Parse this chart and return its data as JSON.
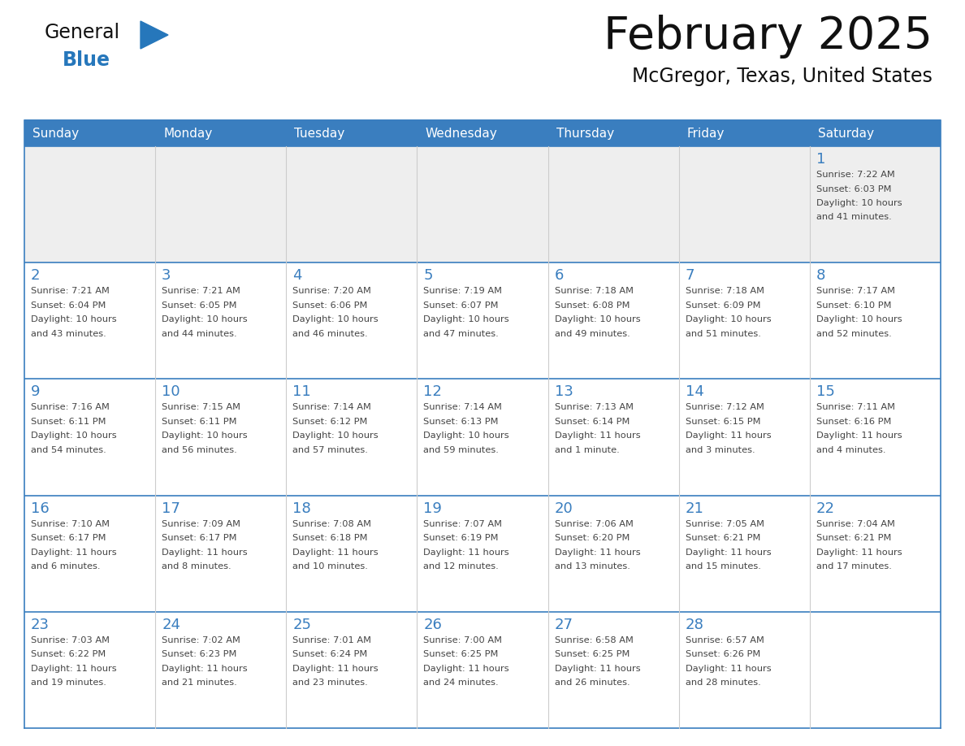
{
  "title": "February 2025",
  "subtitle": "McGregor, Texas, United States",
  "header_color": "#3A7EBF",
  "header_text_color": "#FFFFFF",
  "cell_bg_color": "#FFFFFF",
  "cell_alt_bg": "#EEEEEE",
  "border_color": "#3A7EBF",
  "day_number_color": "#3A7EBF",
  "cell_text_color": "#444444",
  "days_of_week": [
    "Sunday",
    "Monday",
    "Tuesday",
    "Wednesday",
    "Thursday",
    "Friday",
    "Saturday"
  ],
  "logo_general_color": "#111111",
  "logo_blue_color": "#2677BB",
  "weeks": [
    [
      {
        "day": null,
        "info": null
      },
      {
        "day": null,
        "info": null
      },
      {
        "day": null,
        "info": null
      },
      {
        "day": null,
        "info": null
      },
      {
        "day": null,
        "info": null
      },
      {
        "day": null,
        "info": null
      },
      {
        "day": 1,
        "info": "Sunrise: 7:22 AM\nSunset: 6:03 PM\nDaylight: 10 hours\nand 41 minutes."
      }
    ],
    [
      {
        "day": 2,
        "info": "Sunrise: 7:21 AM\nSunset: 6:04 PM\nDaylight: 10 hours\nand 43 minutes."
      },
      {
        "day": 3,
        "info": "Sunrise: 7:21 AM\nSunset: 6:05 PM\nDaylight: 10 hours\nand 44 minutes."
      },
      {
        "day": 4,
        "info": "Sunrise: 7:20 AM\nSunset: 6:06 PM\nDaylight: 10 hours\nand 46 minutes."
      },
      {
        "day": 5,
        "info": "Sunrise: 7:19 AM\nSunset: 6:07 PM\nDaylight: 10 hours\nand 47 minutes."
      },
      {
        "day": 6,
        "info": "Sunrise: 7:18 AM\nSunset: 6:08 PM\nDaylight: 10 hours\nand 49 minutes."
      },
      {
        "day": 7,
        "info": "Sunrise: 7:18 AM\nSunset: 6:09 PM\nDaylight: 10 hours\nand 51 minutes."
      },
      {
        "day": 8,
        "info": "Sunrise: 7:17 AM\nSunset: 6:10 PM\nDaylight: 10 hours\nand 52 minutes."
      }
    ],
    [
      {
        "day": 9,
        "info": "Sunrise: 7:16 AM\nSunset: 6:11 PM\nDaylight: 10 hours\nand 54 minutes."
      },
      {
        "day": 10,
        "info": "Sunrise: 7:15 AM\nSunset: 6:11 PM\nDaylight: 10 hours\nand 56 minutes."
      },
      {
        "day": 11,
        "info": "Sunrise: 7:14 AM\nSunset: 6:12 PM\nDaylight: 10 hours\nand 57 minutes."
      },
      {
        "day": 12,
        "info": "Sunrise: 7:14 AM\nSunset: 6:13 PM\nDaylight: 10 hours\nand 59 minutes."
      },
      {
        "day": 13,
        "info": "Sunrise: 7:13 AM\nSunset: 6:14 PM\nDaylight: 11 hours\nand 1 minute."
      },
      {
        "day": 14,
        "info": "Sunrise: 7:12 AM\nSunset: 6:15 PM\nDaylight: 11 hours\nand 3 minutes."
      },
      {
        "day": 15,
        "info": "Sunrise: 7:11 AM\nSunset: 6:16 PM\nDaylight: 11 hours\nand 4 minutes."
      }
    ],
    [
      {
        "day": 16,
        "info": "Sunrise: 7:10 AM\nSunset: 6:17 PM\nDaylight: 11 hours\nand 6 minutes."
      },
      {
        "day": 17,
        "info": "Sunrise: 7:09 AM\nSunset: 6:17 PM\nDaylight: 11 hours\nand 8 minutes."
      },
      {
        "day": 18,
        "info": "Sunrise: 7:08 AM\nSunset: 6:18 PM\nDaylight: 11 hours\nand 10 minutes."
      },
      {
        "day": 19,
        "info": "Sunrise: 7:07 AM\nSunset: 6:19 PM\nDaylight: 11 hours\nand 12 minutes."
      },
      {
        "day": 20,
        "info": "Sunrise: 7:06 AM\nSunset: 6:20 PM\nDaylight: 11 hours\nand 13 minutes."
      },
      {
        "day": 21,
        "info": "Sunrise: 7:05 AM\nSunset: 6:21 PM\nDaylight: 11 hours\nand 15 minutes."
      },
      {
        "day": 22,
        "info": "Sunrise: 7:04 AM\nSunset: 6:21 PM\nDaylight: 11 hours\nand 17 minutes."
      }
    ],
    [
      {
        "day": 23,
        "info": "Sunrise: 7:03 AM\nSunset: 6:22 PM\nDaylight: 11 hours\nand 19 minutes."
      },
      {
        "day": 24,
        "info": "Sunrise: 7:02 AM\nSunset: 6:23 PM\nDaylight: 11 hours\nand 21 minutes."
      },
      {
        "day": 25,
        "info": "Sunrise: 7:01 AM\nSunset: 6:24 PM\nDaylight: 11 hours\nand 23 minutes."
      },
      {
        "day": 26,
        "info": "Sunrise: 7:00 AM\nSunset: 6:25 PM\nDaylight: 11 hours\nand 24 minutes."
      },
      {
        "day": 27,
        "info": "Sunrise: 6:58 AM\nSunset: 6:25 PM\nDaylight: 11 hours\nand 26 minutes."
      },
      {
        "day": 28,
        "info": "Sunrise: 6:57 AM\nSunset: 6:26 PM\nDaylight: 11 hours\nand 28 minutes."
      },
      {
        "day": null,
        "info": null
      }
    ]
  ],
  "figsize": [
    11.88,
    9.18
  ],
  "dpi": 100
}
